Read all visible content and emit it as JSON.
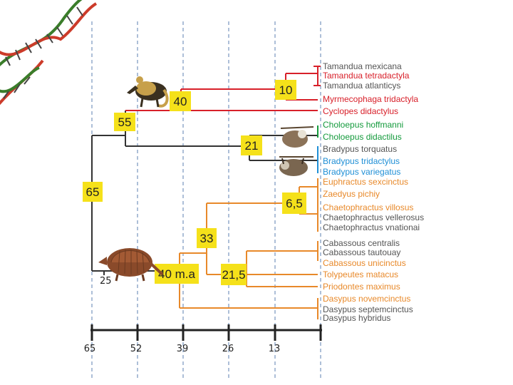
{
  "colors": {
    "red": "#d8202a",
    "green": "#149a3c",
    "blue": "#1f8fd6",
    "orange": "#e8892a",
    "gray": "#555555",
    "dark": "#333333",
    "node_fill": "#f5e11a",
    "axis_dash": "#5b7fb0"
  },
  "nodes": {
    "n65": "65",
    "n55": "55",
    "n40": "40",
    "n10": "10",
    "n21": "21",
    "n6_5": "6,5",
    "n33": "33",
    "n40ma": "40 m.a",
    "n21_5": "21,5"
  },
  "small_label": "25",
  "taxa": [
    {
      "name": "Tamandua mexicana",
      "color": "gray"
    },
    {
      "name": "Tamandua tetradactyla",
      "color": "red"
    },
    {
      "name": "Tamandua atlanticys",
      "color": "gray"
    },
    {
      "name": "Myrmecophaga tridactyla",
      "color": "red"
    },
    {
      "name": "Cyclopes didactylus",
      "color": "red"
    },
    {
      "name": "Choloepus hoffmanni",
      "color": "green"
    },
    {
      "name": "Choloepus didactilus",
      "color": "green"
    },
    {
      "name": "Bradypus torquatus",
      "color": "gray"
    },
    {
      "name": "Bradypus tridactylus",
      "color": "blue"
    },
    {
      "name": "Bradypus variegatus",
      "color": "blue"
    },
    {
      "name": "Euphractus sexcinctus",
      "color": "orange"
    },
    {
      "name": "Zaedyus pichiy",
      "color": "orange"
    },
    {
      "name": "Chaetophractus villosus",
      "color": "orange"
    },
    {
      "name": "Chaetophractus vellerosus",
      "color": "gray"
    },
    {
      "name": "Chaetophractus vnationai",
      "color": "gray"
    },
    {
      "name": "Cabassous centralis",
      "color": "gray"
    },
    {
      "name": "Cabassous tautouay",
      "color": "gray"
    },
    {
      "name": "Cabassous unicinctus",
      "color": "orange"
    },
    {
      "name": "Tolypeutes matacus",
      "color": "orange"
    },
    {
      "name": "Priodontes maximus",
      "color": "orange"
    },
    {
      "name": "Dasypus novemcinctus",
      "color": "orange"
    },
    {
      "name": "Dasypus septemcinctus",
      "color": "gray"
    },
    {
      "name": "Dasypus hybridus",
      "color": "gray"
    }
  ],
  "axis_ticks": [
    "65",
    "52",
    "39",
    "26",
    "13"
  ],
  "icons": {
    "dna": "dna-helix-icon",
    "anteater": "anteater-icon",
    "sloth": "sloth-icon",
    "armadillo": "armadillo-icon"
  }
}
